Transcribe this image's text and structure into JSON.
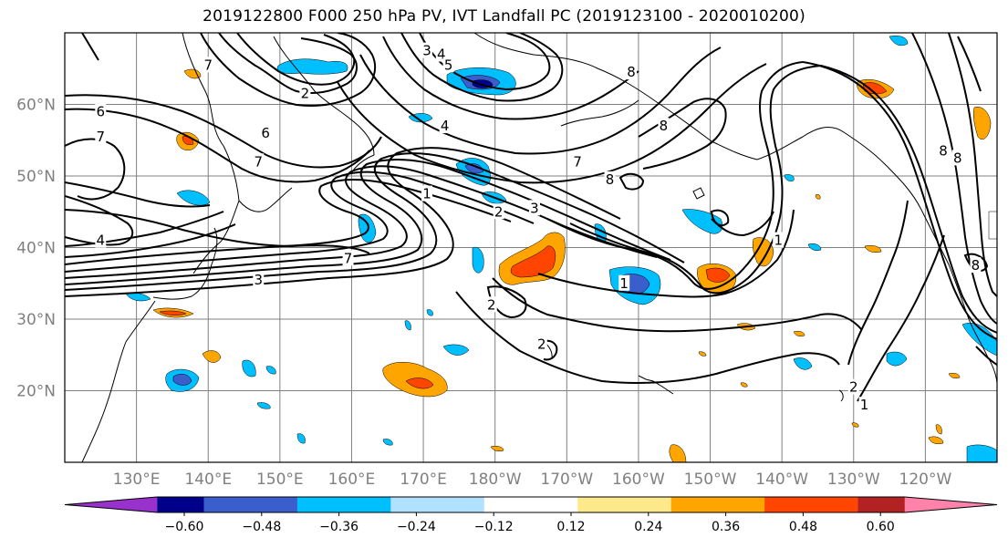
{
  "title": "2019122800 F000 250 hPa PV, IVT Landfall PC (2019123100 - 2020010200)",
  "map": {
    "lon_range": [
      120,
      250
    ],
    "lat_range": [
      10,
      70
    ],
    "lat_ticks": [
      {
        "lat": 20,
        "label": "20°N"
      },
      {
        "lat": 30,
        "label": "30°N"
      },
      {
        "lat": 40,
        "label": "40°N"
      },
      {
        "lat": 50,
        "label": "50°N"
      },
      {
        "lat": 60,
        "label": "60°N"
      }
    ],
    "lon_ticks": [
      {
        "lon": 130,
        "label": "130°E"
      },
      {
        "lon": 140,
        "label": "140°E"
      },
      {
        "lon": 150,
        "label": "150°E"
      },
      {
        "lon": 160,
        "label": "160°E"
      },
      {
        "lon": 170,
        "label": "170°E"
      },
      {
        "lon": 180,
        "label": "180°W"
      },
      {
        "lon": 190,
        "label": "170°W"
      },
      {
        "lon": 200,
        "label": "160°W"
      },
      {
        "lon": 210,
        "label": "150°W"
      },
      {
        "lon": 220,
        "label": "140°W"
      },
      {
        "lon": 230,
        "label": "130°W"
      },
      {
        "lon": 240,
        "label": "120°W"
      }
    ],
    "contour_labels": [
      {
        "text": "6",
        "lon": 125,
        "lat": 59
      },
      {
        "text": "7",
        "lon": 125,
        "lat": 55.5
      },
      {
        "text": "7",
        "lon": 140,
        "lat": 65.5
      },
      {
        "text": "2",
        "lon": 153.5,
        "lat": 61.5
      },
      {
        "text": "6",
        "lon": 148,
        "lat": 56
      },
      {
        "text": "7",
        "lon": 147,
        "lat": 52
      },
      {
        "text": "3",
        "lon": 170.5,
        "lat": 67.5
      },
      {
        "text": "4",
        "lon": 172.5,
        "lat": 67
      },
      {
        "text": "5",
        "lon": 173.5,
        "lat": 65.5
      },
      {
        "text": "4",
        "lon": 173,
        "lat": 57
      },
      {
        "text": "8",
        "lon": 199,
        "lat": 64.5
      },
      {
        "text": "8",
        "lon": 203.5,
        "lat": 57
      },
      {
        "text": "7",
        "lon": 191.5,
        "lat": 52
      },
      {
        "text": "8",
        "lon": 196,
        "lat": 49.5
      },
      {
        "text": "1",
        "lon": 170.5,
        "lat": 47.5
      },
      {
        "text": "2",
        "lon": 180.5,
        "lat": 45
      },
      {
        "text": "3",
        "lon": 185.5,
        "lat": 45.5
      },
      {
        "text": "4",
        "lon": 125,
        "lat": 41
      },
      {
        "text": "7",
        "lon": 159.5,
        "lat": 38.5
      },
      {
        "text": "3",
        "lon": 147,
        "lat": 35.5
      },
      {
        "text": "1",
        "lon": 198,
        "lat": 35
      },
      {
        "text": "2",
        "lon": 179.5,
        "lat": 32
      },
      {
        "text": "2",
        "lon": 186.5,
        "lat": 26.5
      },
      {
        "text": "1",
        "lon": 219.5,
        "lat": 41
      },
      {
        "text": "2",
        "lon": 230,
        "lat": 20.5
      },
      {
        "text": "1",
        "lon": 231.5,
        "lat": 18
      },
      {
        "text": "8",
        "lon": 244.5,
        "lat": 52.5
      },
      {
        "text": "8",
        "lon": 242.5,
        "lat": 53.5
      },
      {
        "text": "8",
        "lon": 247,
        "lat": 37.5
      }
    ]
  },
  "colorbar": {
    "colors": [
      "#9932cc",
      "#00008b",
      "#3a5fcd",
      "#00bfff",
      "#b0e2ff",
      "#ffffff",
      "#fee98a",
      "#ffa500",
      "#ff4500",
      "#b22222",
      "#ff82ab"
    ],
    "tick_labels": [
      "−0.60",
      "−0.48",
      "−0.36",
      "−0.24",
      "−0.12",
      "0.12",
      "0.24",
      "0.36",
      "0.48",
      "0.60"
    ]
  }
}
